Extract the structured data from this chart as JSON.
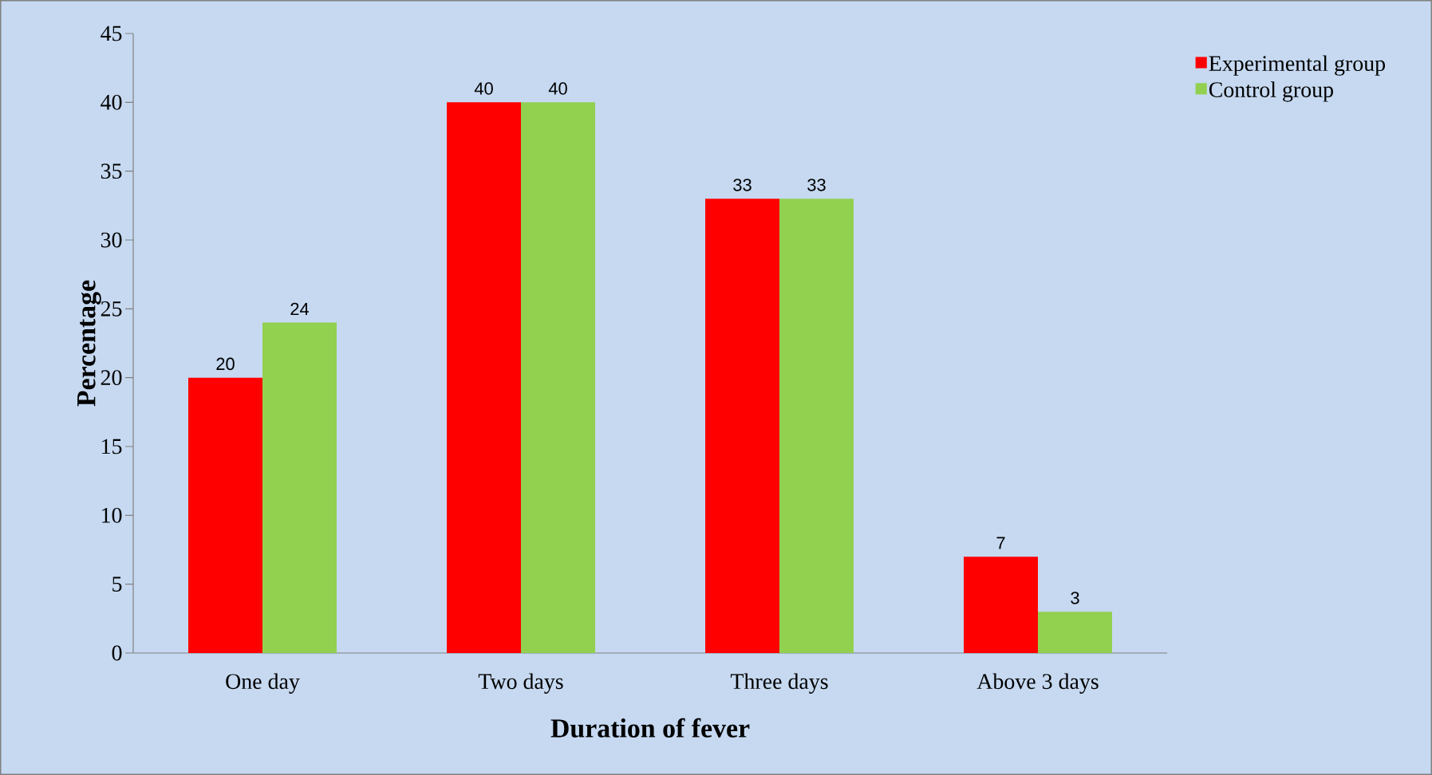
{
  "chart_data": {
    "type": "bar",
    "xlabel": "Duration of fever",
    "ylabel": "Percentage",
    "categories": [
      "One day",
      "Two days",
      "Three days",
      "Above 3 days"
    ],
    "series": [
      {
        "name": "Experimental group",
        "color": "#ff0000",
        "values": [
          20,
          40,
          33,
          7
        ]
      },
      {
        "name": "Control group",
        "color": "#92d050",
        "values": [
          24,
          40,
          33,
          3
        ]
      }
    ],
    "ylim": [
      0,
      45
    ],
    "yticks": [
      0,
      5,
      10,
      15,
      20,
      25,
      30,
      35,
      40,
      45
    ],
    "data_labels": true,
    "legend": "top right",
    "grid": false
  }
}
